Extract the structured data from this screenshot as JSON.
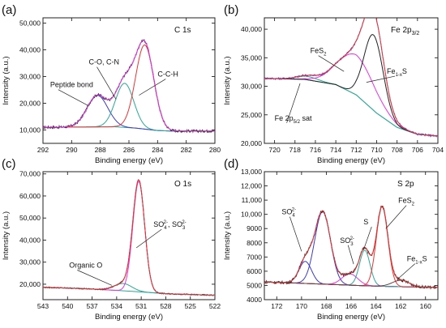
{
  "chart_data": [
    {
      "type": "line",
      "panel_label": "(a)",
      "title": "C 1s",
      "xlabel": "Binding energy (eV)",
      "ylabel": "Intensity (a.u.)",
      "xlim": [
        292,
        280
      ],
      "ylim": [
        5000,
        52000
      ],
      "x_reversed": true,
      "x_ticks": [
        "292",
        "290",
        "288",
        "286",
        "284",
        "282",
        "280"
      ],
      "x_tick_values": [
        292,
        290,
        288,
        286,
        284,
        282,
        280
      ],
      "y_ticks": [
        "10,000",
        "20,000",
        "30,000",
        "40,000",
        "50,000"
      ],
      "y_tick_values": [
        10000,
        20000,
        30000,
        40000,
        50000
      ],
      "background": [
        [
          292,
          11000
        ],
        [
          287,
          11200
        ],
        [
          285.5,
          10700
        ],
        [
          284,
          9800
        ],
        [
          283,
          9600
        ],
        [
          282.8,
          9600
        ]
      ],
      "peaks": [
        {
          "label": "Peptide bond",
          "center": 288.2,
          "height": 11800,
          "fwhm": 1.7,
          "color": "#3a3acc"
        },
        {
          "label": "C-O, C-N",
          "center": 286.3,
          "height": 16500,
          "fwhm": 1.5,
          "color": "#2aa89a"
        },
        {
          "label": "C-C-H",
          "center": 284.9,
          "height": 31500,
          "fwhm": 1.5,
          "color": "#ee3333"
        }
      ],
      "observed": {
        "color": "#222222",
        "noise": 450
      },
      "envelope": {
        "color": "#e833e8"
      },
      "annotations": [
        {
          "text": "Peptide bond",
          "x": 291.5,
          "y": 26000,
          "arrow_to": [
            288.8,
            19000
          ]
        },
        {
          "text": "C-O, C-N",
          "x": 288.8,
          "y": 34500,
          "arrow_to": [
            286.9,
            21500
          ]
        },
        {
          "text": "C-C-H",
          "x": 284.0,
          "y": 30000,
          "arrow_to": [
            285.3,
            23000
          ]
        }
      ],
      "colors": {
        "envelope": "#e833e8",
        "observed": "#222222",
        "background": "#2aa89a"
      }
    },
    {
      "type": "line",
      "panel_label": "(b)",
      "title": "Fe 2p3/2",
      "xlabel": "Binding energy (eV)",
      "ylabel": "Intensity (a.u.)",
      "xlim": [
        721,
        704
      ],
      "ylim": [
        20000,
        42000
      ],
      "x_reversed": true,
      "x_ticks": [
        "720",
        "718",
        "716",
        "714",
        "712",
        "710",
        "708",
        "706",
        "704"
      ],
      "x_tick_values": [
        720,
        718,
        716,
        714,
        712,
        710,
        708,
        706,
        704
      ],
      "y_ticks": [
        "20,000",
        "25,000",
        "30,000",
        "35,000",
        "40,000"
      ],
      "y_tick_values": [
        20000,
        25000,
        30000,
        35000,
        40000
      ],
      "background": [
        [
          721,
          31400
        ],
        [
          717,
          31200
        ],
        [
          714,
          30300
        ],
        [
          712,
          28500
        ],
        [
          710,
          25300
        ],
        [
          708,
          22800
        ],
        [
          706,
          21600
        ],
        [
          704.2,
          21300
        ]
      ],
      "peaks": [
        {
          "label": "Fe 2p5/2 sat",
          "center": 716.8,
          "height": 600,
          "fwhm": 2.5,
          "color": "#2aa89a"
        },
        {
          "label": "FeS2",
          "center": 712.0,
          "height": 7000,
          "fwhm": 4.2,
          "color": "#e833e8"
        },
        {
          "label": "Fe1-xS",
          "center": 710.3,
          "height": 13200,
          "fwhm": 2.2,
          "color": "#222222"
        }
      ],
      "observed": {
        "color": "#3a3acc",
        "noise": 160
      },
      "envelope": {
        "color": "#ee3333"
      },
      "annotations": [
        {
          "text": "FeS",
          "sub": "2",
          "x": 716.5,
          "y": 35800,
          "arrow_to": [
            713.2,
            32600
          ]
        },
        {
          "text": "Fe",
          "sub": "1-x",
          "suffix": "S",
          "x": 709.0,
          "y": 32200,
          "arrow_to": [
            711.0,
            30700
          ]
        },
        {
          "text": "Fe 2p",
          "sub": "5/2",
          "suffix": " sat",
          "x": 720.0,
          "y": 24000,
          "arrow_to": [
            717.5,
            30500
          ]
        }
      ],
      "colors": {
        "envelope": "#ee3333",
        "observed": "#3a3acc",
        "background": "#2aa89a"
      }
    },
    {
      "type": "line",
      "panel_label": "(c)",
      "title": "O 1s",
      "xlabel": "Binding energy (eV)",
      "ylabel": "Intensity (a.u.)",
      "xlim": [
        543,
        522
      ],
      "ylim": [
        13000,
        71000
      ],
      "x_reversed": true,
      "x_ticks": [
        "543",
        "540",
        "537",
        "534",
        "531",
        "528",
        "525",
        "522"
      ],
      "x_tick_values": [
        543,
        540,
        537,
        534,
        531,
        528,
        525,
        522
      ],
      "y_ticks": [
        "20,000",
        "30,000",
        "40,000",
        "50,000",
        "60,000",
        "70,000"
      ],
      "y_tick_values": [
        20000,
        30000,
        40000,
        50000,
        60000,
        70000
      ],
      "background": [
        [
          543,
          18600
        ],
        [
          538,
          18000
        ],
        [
          534,
          17200
        ],
        [
          531,
          16500
        ],
        [
          528,
          15700
        ],
        [
          524,
          15200
        ],
        [
          522,
          15000
        ]
      ],
      "peaks": [
        {
          "label": "Organic O",
          "center": 533.2,
          "height": 3300,
          "fwhm": 2.5,
          "color": "#2aa89a"
        },
        {
          "label": "SO4 2-, SO3 2-",
          "center": 531.3,
          "height": 50000,
          "fwhm": 1.7,
          "color": "#e833e8"
        }
      ],
      "observed": {
        "color": "#222222",
        "noise": 250
      },
      "envelope": {
        "color": "#ee3333"
      },
      "annotations": [
        {
          "text": "Organic O",
          "x": 539.8,
          "y": 27500,
          "arrow_to": [
            534.6,
            19500
          ]
        },
        {
          "text": "SO4 SO3",
          "x": 529.5,
          "y": 46000,
          "arrow_to": [
            531.6,
            36500
          ]
        }
      ],
      "colors": {
        "envelope": "#ee3333",
        "observed": "#222222",
        "background": "#2aa89a"
      }
    },
    {
      "type": "line",
      "panel_label": "(d)",
      "title": "S 2p",
      "xlabel": "Binding energy (eV)",
      "ylabel": "Intensity (a.u.)",
      "xlim": [
        173,
        159
      ],
      "ylim": [
        4000,
        13000
      ],
      "x_reversed": true,
      "x_ticks": [
        "172",
        "170",
        "168",
        "166",
        "164",
        "162",
        "160"
      ],
      "x_tick_values": [
        172,
        170,
        168,
        166,
        164,
        162,
        160
      ],
      "y_ticks": [
        "4000",
        "5000",
        "6000",
        "7000",
        "8000",
        "9000",
        "10,000",
        "11,000",
        "12,000",
        "13,000"
      ],
      "y_tick_values": [
        4000,
        5000,
        6000,
        7000,
        8000,
        9000,
        10000,
        11000,
        12000,
        13000
      ],
      "background": [
        [
          173,
          5250
        ],
        [
          170,
          5150
        ],
        [
          167,
          5050
        ],
        [
          165,
          4980
        ],
        [
          163,
          4930
        ],
        [
          161,
          4890
        ],
        [
          159.5,
          4870
        ]
      ],
      "peaks": [
        {
          "label": "SO4 2- a",
          "center": 169.7,
          "height": 1550,
          "fwhm": 1.2,
          "color": "#3a3acc"
        },
        {
          "label": "SO4 2- b",
          "center": 168.3,
          "height": 5100,
          "fwhm": 1.5,
          "color": "#3a3acc"
        },
        {
          "label": "SO3 2-",
          "center": 166.1,
          "height": 800,
          "fwhm": 1.5,
          "color": "#e833e8"
        },
        {
          "label": "S",
          "center": 164.9,
          "height": 2500,
          "fwhm": 1.0,
          "color": "#2aa89a"
        },
        {
          "label": "FeS2",
          "center": 163.5,
          "height": 5600,
          "fwhm": 1.1,
          "color": "#ee3333"
        },
        {
          "label": "Fe1-xS",
          "center": 162.0,
          "height": 450,
          "fwhm": 1.6,
          "color": "#7a3b3b"
        }
      ],
      "observed": {
        "color": "#222222",
        "noise": 90
      },
      "envelope": {
        "color": "#ee3333"
      },
      "annotations": [
        {
          "text": "SO",
          "sub": "4",
          "sup": "2-",
          "x": 171.6,
          "y": 10000,
          "arrow_to": [
            170.0,
            7400
          ]
        },
        {
          "text": "SO",
          "sub": "3",
          "sup": "2-",
          "x": 166.9,
          "y": 8000,
          "arrow_to": [
            165.8,
            6500
          ]
        },
        {
          "text": "S",
          "x": 165.0,
          "y": 9300,
          "arrow_to": [
            165.0,
            7500
          ]
        },
        {
          "text": "FeS",
          "sub": "2",
          "x": 162.2,
          "y": 10800,
          "arrow_to": [
            163.2,
            9000
          ]
        },
        {
          "text": "Fe",
          "sub": "1-x",
          "suffix": "S",
          "x": 161.5,
          "y": 6700,
          "arrow_to": [
            162.3,
            5400
          ]
        }
      ],
      "colors": {
        "envelope": "#ee3333",
        "observed": "#222222",
        "background": "#7a3b3b"
      }
    }
  ],
  "labels": {
    "p0_title": "C 1s",
    "p1_title_main": "Fe 2p",
    "p1_title_sub": "3/2",
    "p2_title": "O 1s",
    "p3_title": "S 2p",
    "c_ann_so4": "SO",
    "c_ann_sub4": "4",
    "c_ann_sup": "2-",
    "c_ann_sep": ", SO",
    "c_ann_sub3": "3",
    "c_ann_sup3": "2-"
  }
}
